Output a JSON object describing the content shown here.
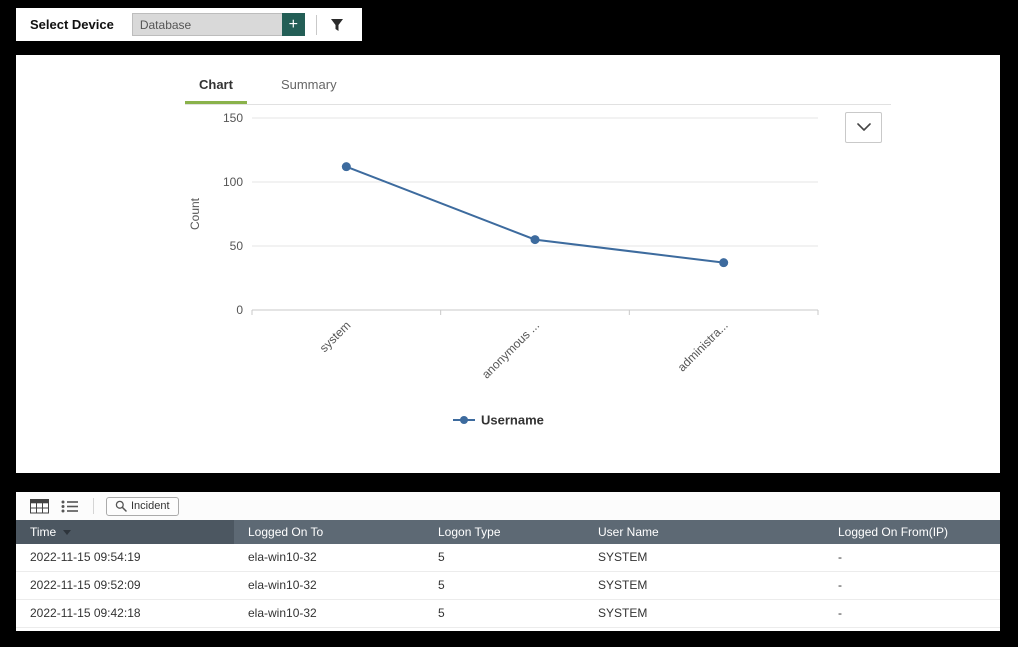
{
  "colors": {
    "accent_green": "#8ab24b",
    "line_blue": "#3d6b9e",
    "table_header_bg": "#5d6974",
    "sorted_column_bg": "#4c5761",
    "add_button_teal": "#235e56"
  },
  "topbar": {
    "select_device_label": "Select Device",
    "device_input_value": "Database",
    "add_button_label": "+"
  },
  "chart_panel": {
    "tabs": [
      {
        "label": "Chart",
        "active": true
      },
      {
        "label": "Summary",
        "active": false
      }
    ],
    "chart_data": {
      "type": "line",
      "categories": [
        "system",
        "anonymous ...",
        "administra..."
      ],
      "series": [
        {
          "name": "Username",
          "values": [
            112,
            55,
            37
          ]
        }
      ],
      "title": "",
      "xlabel": "",
      "ylabel": "Count",
      "yticks": [
        0,
        50,
        100,
        150
      ],
      "ylim": [
        0,
        150
      ],
      "grid": true,
      "legend_position": "bottom"
    }
  },
  "table_panel": {
    "toolbar": {
      "incident_label": "Incident"
    },
    "columns": [
      "Time",
      "Logged On To",
      "Logon Type",
      "User Name",
      "Logged On From(IP)"
    ],
    "sort": {
      "column": "Time",
      "direction": "desc"
    },
    "rows": [
      [
        "2022-11-15 09:54:19",
        "ela-win10-32",
        "5",
        "SYSTEM",
        "-"
      ],
      [
        "2022-11-15 09:52:09",
        "ela-win10-32",
        "5",
        "SYSTEM",
        "-"
      ],
      [
        "2022-11-15 09:42:18",
        "ela-win10-32",
        "5",
        "SYSTEM",
        "-"
      ]
    ]
  }
}
